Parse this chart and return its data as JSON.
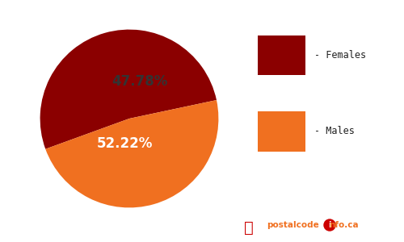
{
  "slices": [
    52.22,
    47.78
  ],
  "labels": [
    "52.22%",
    "47.78%"
  ],
  "colors": [
    "#8B0000",
    "#F07020"
  ],
  "legend_labels": [
    "- Females",
    "- Males"
  ],
  "legend_colors": [
    "#8B0000",
    "#F07020"
  ],
  "startangle": 200,
  "females_text_color": "white",
  "males_text_color": "#333333",
  "label_fontsize": 12,
  "background_color": "#ffffff"
}
